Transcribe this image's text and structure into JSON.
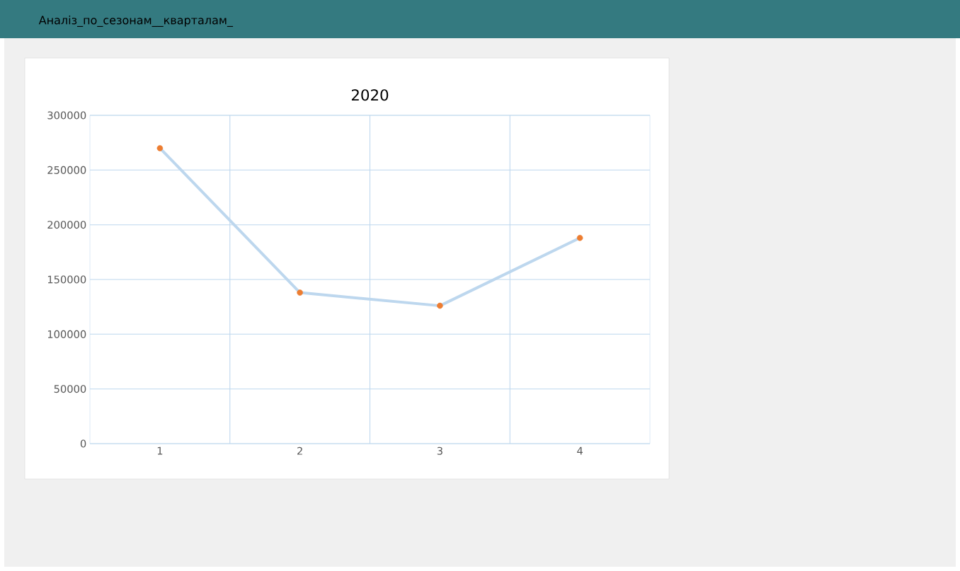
{
  "chart_data": {
    "type": "line",
    "title": "2020",
    "annotations": [
      "Аналіз_по_сезонам__кварталам_"
    ],
    "categories": [
      "1",
      "2",
      "3",
      "4"
    ],
    "series": [
      {
        "color": "#bdd7ee",
        "colors": [
          "#ed7d31",
          "#ed7d31",
          "#ed7d31",
          "#ed7d31"
        ],
        "values": [
          270000,
          138000,
          126000,
          188000
        ]
      }
    ],
    "ylim": [
      0,
      300000
    ],
    "yticks": [
      0,
      50000,
      100000,
      150000,
      200000,
      250000,
      300000
    ],
    "grid": true,
    "marker": "circle",
    "line_style": "solid"
  }
}
